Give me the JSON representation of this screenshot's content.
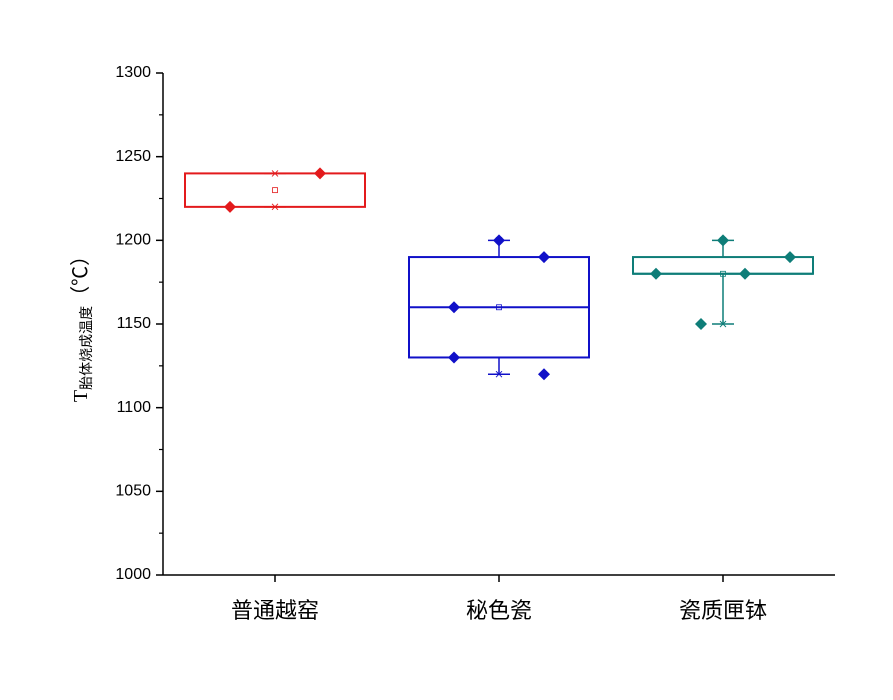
{
  "chart_data": {
    "type": "box",
    "y_label_symbol": "T",
    "y_label_subscript": "胎体烧成温度",
    "y_label_unit": "（℃）",
    "categories": [
      "普通越窑",
      "秘色瓷",
      "瓷质匣钵"
    ],
    "ylim": [
      1000,
      1300
    ],
    "yticks": [
      1000,
      1050,
      1100,
      1150,
      1200,
      1250,
      1300
    ],
    "yminor_ticks": [
      1025,
      1075,
      1125,
      1175,
      1225,
      1275
    ],
    "boxes": [
      {
        "color": "#e31a1c",
        "q1": 1220,
        "median": null,
        "q3": 1240,
        "whisker_low": 1220,
        "whisker_high": 1240,
        "mean": 1230,
        "min": 1220,
        "max": 1240,
        "points": [
          1220,
          1240
        ]
      },
      {
        "color": "#1010c8",
        "q1": 1130,
        "median": 1160,
        "q3": 1190,
        "whisker_low": 1120,
        "whisker_high": 1200,
        "mean": 1160,
        "min": 1120,
        "max": 1200,
        "points": [
          1160,
          1130,
          1200,
          1190,
          1120
        ]
      },
      {
        "color": "#0e7d78",
        "q1": 1180,
        "median": 1180,
        "q3": 1190,
        "whisker_low": 1150,
        "whisker_high": 1200,
        "mean": 1180,
        "min": 1150,
        "max": 1200,
        "points": [
          1180,
          1150,
          1200,
          1180,
          1190
        ]
      }
    ]
  }
}
